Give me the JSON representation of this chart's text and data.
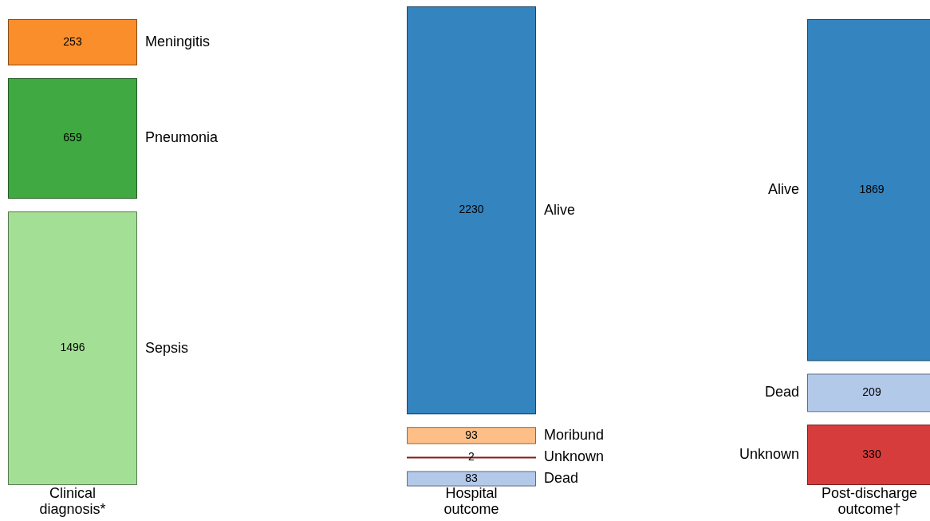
{
  "chart_data": {
    "type": "other",
    "categories": [
      "Meningitis",
      "Pneumonia",
      "Sepsis",
      "Alive",
      "Moribund",
      "Unknown",
      "Dead",
      "Alive",
      "Dead",
      "Unknown"
    ],
    "series": [
      {
        "name": "Clinical diagnosis*",
        "values": [
          253,
          659,
          1496,
          null,
          null,
          null,
          null,
          null,
          null,
          null
        ],
        "colors": [
          "#f98e2b",
          "#41a941",
          "#a3e095",
          null,
          null,
          null,
          null,
          null,
          null,
          null
        ]
      },
      {
        "name": "Hospital outcome",
        "values": [
          null,
          null,
          null,
          2230,
          93,
          2,
          83,
          null,
          null,
          null
        ],
        "colors": [
          null,
          null,
          null,
          "#3484bf",
          "#fdbf87",
          "#8b1a1a",
          "#b3c9ea",
          null,
          null,
          null
        ]
      },
      {
        "name": "Post-discharge outcome†",
        "values": [
          null,
          null,
          null,
          null,
          null,
          null,
          null,
          1869,
          209,
          330
        ],
        "colors": [
          null,
          null,
          null,
          null,
          null,
          null,
          null,
          "#3484bf",
          "#b3c9ea",
          "#d73c3c"
        ]
      }
    ],
    "data_labels": true
  }
}
